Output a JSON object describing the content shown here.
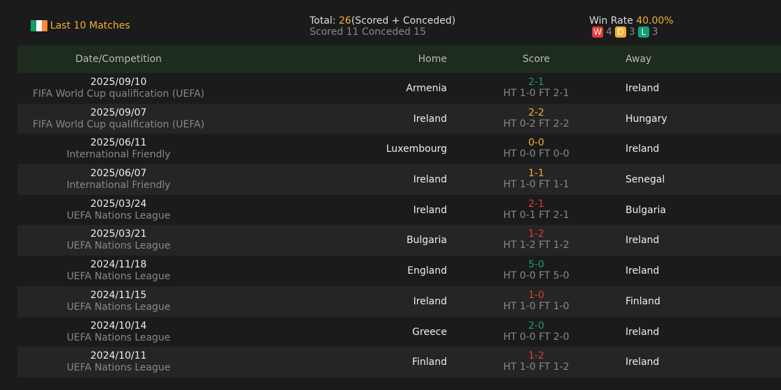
{
  "header": {
    "title": "Last 10 Matches",
    "total_label": "Total: ",
    "total_value": "26",
    "total_suffix": "(Scored + Conceded)",
    "scored_conceded": "Scored 11 Conceded 15",
    "win_rate_label": "Win Rate ",
    "win_rate_value": "40.00%",
    "w_label": "W",
    "w_count": "4",
    "d_label": "D",
    "d_count": "3",
    "l_label": "L",
    "l_count": "3"
  },
  "colors": {
    "win": "#e53935",
    "draw": "#f0b232",
    "loss": "#169e74",
    "flag": [
      "#169b62",
      "#ffffff",
      "#ff883e"
    ]
  },
  "columns": {
    "date": "Date/Competition",
    "home": "Home",
    "score": "Score",
    "away": "Away"
  },
  "matches": [
    {
      "date": "2025/09/10",
      "competition": "FIFA World Cup qualification (UEFA)",
      "home": "Armenia",
      "score": "2-1",
      "detail": "HT 1-0 FT 2-1",
      "away": "Ireland",
      "result": "loss"
    },
    {
      "date": "2025/09/07",
      "competition": "FIFA World Cup qualification (UEFA)",
      "home": "Ireland",
      "score": "2-2",
      "detail": "HT 0-2 FT 2-2",
      "away": "Hungary",
      "result": "draw"
    },
    {
      "date": "2025/06/11",
      "competition": "International Friendly",
      "home": "Luxembourg",
      "score": "0-0",
      "detail": "HT 0-0 FT 0-0",
      "away": "Ireland",
      "result": "draw"
    },
    {
      "date": "2025/06/07",
      "competition": "International Friendly",
      "home": "Ireland",
      "score": "1-1",
      "detail": "HT 1-0 FT 1-1",
      "away": "Senegal",
      "result": "draw"
    },
    {
      "date": "2025/03/24",
      "competition": "UEFA Nations League",
      "home": "Ireland",
      "score": "2-1",
      "detail": "HT 0-1 FT 2-1",
      "away": "Bulgaria",
      "result": "win"
    },
    {
      "date": "2025/03/21",
      "competition": "UEFA Nations League",
      "home": "Bulgaria",
      "score": "1-2",
      "detail": "HT 1-2 FT 1-2",
      "away": "Ireland",
      "result": "win"
    },
    {
      "date": "2024/11/18",
      "competition": "UEFA Nations League",
      "home": "England",
      "score": "5-0",
      "detail": "HT 0-0 FT 5-0",
      "away": "Ireland",
      "result": "loss"
    },
    {
      "date": "2024/11/15",
      "competition": "UEFA Nations League",
      "home": "Ireland",
      "score": "1-0",
      "detail": "HT 1-0 FT 1-0",
      "away": "Finland",
      "result": "win"
    },
    {
      "date": "2024/10/14",
      "competition": "UEFA Nations League",
      "home": "Greece",
      "score": "2-0",
      "detail": "HT 0-0 FT 2-0",
      "away": "Ireland",
      "result": "loss"
    },
    {
      "date": "2024/10/11",
      "competition": "UEFA Nations League",
      "home": "Finland",
      "score": "1-2",
      "detail": "HT 1-0 FT 1-2",
      "away": "Ireland",
      "result": "win"
    }
  ]
}
